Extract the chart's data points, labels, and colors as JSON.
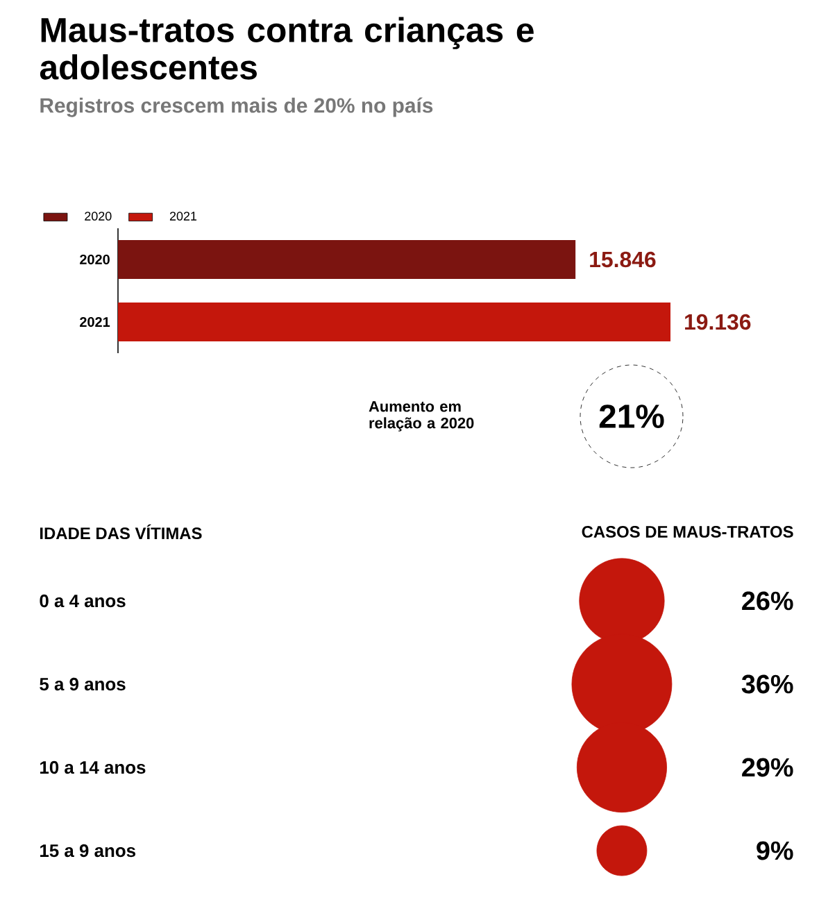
{
  "chart_data": [
    {
      "type": "bar",
      "orientation": "horizontal",
      "title": "Maus-tratos contra crianças e adolescentes",
      "subtitle": "Registros crescem mais de 20% no país",
      "categories": [
        "2020",
        "2021"
      ],
      "legend": "top left",
      "series": [
        {
          "name": "2020",
          "color": "#7b1410",
          "values": [
            15846,
            null
          ],
          "value_labels": [
            "15.846",
            null
          ]
        },
        {
          "name": "2021",
          "color": "#c4170c",
          "values": [
            null,
            19136
          ],
          "value_labels": [
            null,
            "19.136"
          ]
        }
      ],
      "annotations": [
        "Aumento em relação a 2020",
        "21%"
      ]
    },
    {
      "type": "other",
      "ylabel": "IDADE DAS VÍTIMAS",
      "xlabel": "CASOS DE MAUS-TRATOS",
      "categories": [
        "0 a 4 anos",
        "5 a 9 anos",
        "10  a 14 anos",
        "15 a 9 anos"
      ],
      "values": [
        26,
        36,
        29,
        9
      ],
      "value_labels": [
        "26%",
        "36%",
        "29%",
        "9%"
      ],
      "color": "#c4170c"
    }
  ]
}
